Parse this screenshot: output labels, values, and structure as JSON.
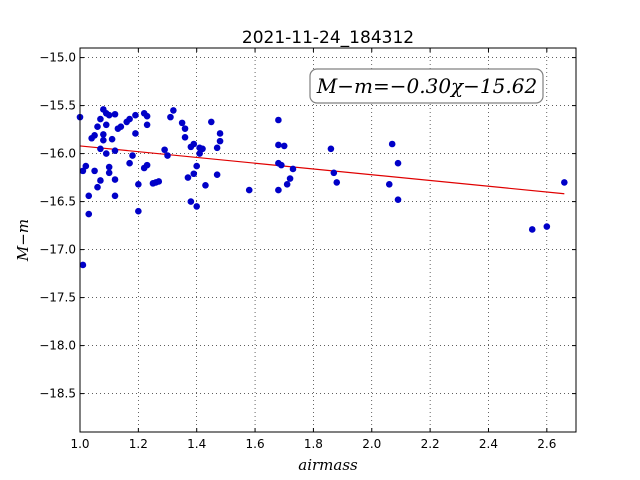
{
  "chart_data": {
    "type": "scatter",
    "title": "2021-11-24_184312",
    "xlabel": "airmass",
    "ylabel": "M−m",
    "xlim": [
      1.0,
      2.7
    ],
    "ylim": [
      -14.9,
      -18.9
    ],
    "y_inverted": true,
    "grid": true,
    "x_ticks": [
      "1.0",
      "1.2",
      "1.4",
      "1.6",
      "1.8",
      "2.0",
      "2.2",
      "2.4",
      "2.6"
    ],
    "y_ticks": [
      "−15.0",
      "−15.5",
      "−16.0",
      "−16.5",
      "−17.0",
      "−17.5",
      "−18.0",
      "−18.5"
    ],
    "annotation": "M−m=−0.30χ−15.62",
    "fit": {
      "slope": -0.3,
      "intercept": -15.62,
      "x_range": [
        1.0,
        2.66
      ],
      "color": "#e00000"
    },
    "point_color": "#0000c8",
    "points": [
      [
        1.0,
        -15.62
      ],
      [
        1.01,
        -16.18
      ],
      [
        1.01,
        -17.16
      ],
      [
        1.02,
        -16.13
      ],
      [
        1.03,
        -16.44
      ],
      [
        1.03,
        -16.63
      ],
      [
        1.04,
        -15.84
      ],
      [
        1.05,
        -15.81
      ],
      [
        1.05,
        -16.18
      ],
      [
        1.06,
        -15.72
      ],
      [
        1.06,
        -16.35
      ],
      [
        1.07,
        -15.64
      ],
      [
        1.07,
        -16.28
      ],
      [
        1.07,
        -15.95
      ],
      [
        1.08,
        -15.54
      ],
      [
        1.08,
        -15.8
      ],
      [
        1.08,
        -15.86
      ],
      [
        1.09,
        -15.58
      ],
      [
        1.09,
        -15.7
      ],
      [
        1.09,
        -16.0
      ],
      [
        1.1,
        -15.6
      ],
      [
        1.1,
        -16.14
      ],
      [
        1.1,
        -16.2
      ],
      [
        1.11,
        -15.85
      ],
      [
        1.12,
        -15.59
      ],
      [
        1.12,
        -15.97
      ],
      [
        1.12,
        -16.27
      ],
      [
        1.12,
        -16.44
      ],
      [
        1.13,
        -15.74
      ],
      [
        1.14,
        -15.72
      ],
      [
        1.16,
        -15.67
      ],
      [
        1.17,
        -15.64
      ],
      [
        1.17,
        -16.1
      ],
      [
        1.18,
        -16.02
      ],
      [
        1.19,
        -15.6
      ],
      [
        1.19,
        -15.79
      ],
      [
        1.2,
        -16.32
      ],
      [
        1.2,
        -16.6
      ],
      [
        1.22,
        -15.58
      ],
      [
        1.22,
        -16.15
      ],
      [
        1.23,
        -15.61
      ],
      [
        1.23,
        -15.7
      ],
      [
        1.23,
        -16.12
      ],
      [
        1.25,
        -16.31
      ],
      [
        1.26,
        -16.3
      ],
      [
        1.27,
        -16.29
      ],
      [
        1.29,
        -15.96
      ],
      [
        1.3,
        -16.02
      ],
      [
        1.31,
        -15.62
      ],
      [
        1.32,
        -15.55
      ],
      [
        1.35,
        -15.68
      ],
      [
        1.36,
        -15.74
      ],
      [
        1.36,
        -15.83
      ],
      [
        1.37,
        -16.25
      ],
      [
        1.38,
        -15.93
      ],
      [
        1.38,
        -16.5
      ],
      [
        1.39,
        -15.9
      ],
      [
        1.39,
        -16.21
      ],
      [
        1.4,
        -16.55
      ],
      [
        1.4,
        -16.13
      ],
      [
        1.41,
        -15.94
      ],
      [
        1.41,
        -16.0
      ],
      [
        1.42,
        -15.95
      ],
      [
        1.43,
        -16.33
      ],
      [
        1.45,
        -15.67
      ],
      [
        1.47,
        -15.94
      ],
      [
        1.47,
        -16.22
      ],
      [
        1.48,
        -15.87
      ],
      [
        1.48,
        -15.79
      ],
      [
        1.58,
        -16.38
      ],
      [
        1.68,
        -15.65
      ],
      [
        1.68,
        -15.91
      ],
      [
        1.68,
        -16.1
      ],
      [
        1.68,
        -16.38
      ],
      [
        1.69,
        -16.12
      ],
      [
        1.7,
        -15.92
      ],
      [
        1.71,
        -16.32
      ],
      [
        1.72,
        -16.26
      ],
      [
        1.73,
        -16.16
      ],
      [
        1.86,
        -15.95
      ],
      [
        1.87,
        -16.2
      ],
      [
        1.88,
        -16.3
      ],
      [
        2.06,
        -16.32
      ],
      [
        2.07,
        -15.9
      ],
      [
        2.09,
        -16.1
      ],
      [
        2.09,
        -16.48
      ],
      [
        2.55,
        -16.79
      ],
      [
        2.6,
        -16.76
      ],
      [
        2.66,
        -16.3
      ]
    ]
  }
}
